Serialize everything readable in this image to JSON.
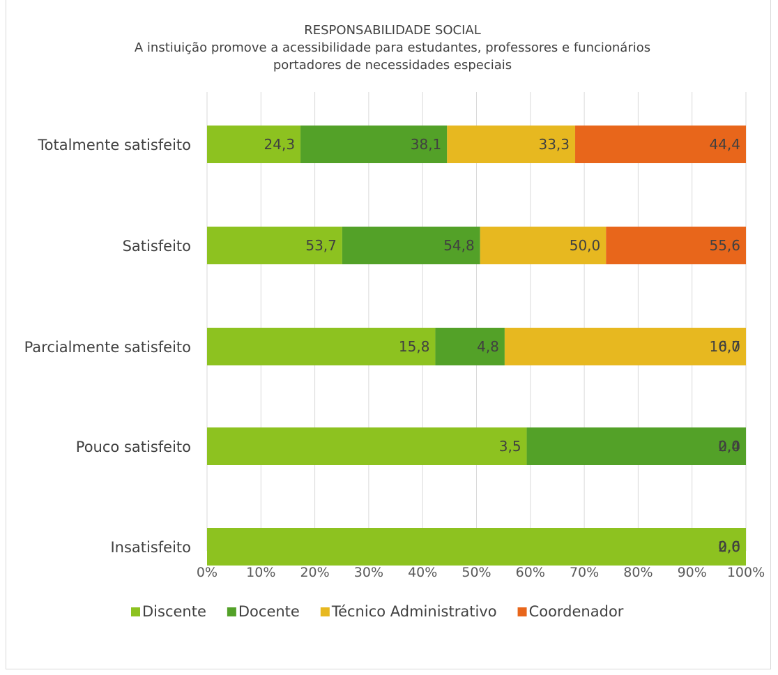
{
  "chart_data": {
    "type": "bar",
    "orientation": "horizontal",
    "stacked": "percent",
    "title": [
      "RESPONSABILIDADE SOCIAL",
      "A instiuição promove a acessibilidade para estudantes, professores e funcionários",
      "portadores de necessidades especiais"
    ],
    "categories": [
      "Totalmente satisfeito",
      "Satisfeito",
      "Parcialmente satisfeito",
      "Pouco satisfeito",
      "Insatisfeito"
    ],
    "series": [
      {
        "name": "Discente",
        "color": "#8dc220",
        "values": [
          24.3,
          53.7,
          15.8,
          3.5,
          2.6
        ]
      },
      {
        "name": "Docente",
        "color": "#53a128",
        "values": [
          38.1,
          54.8,
          4.8,
          2.4,
          0.0
        ]
      },
      {
        "name": "Técnico Administrativo",
        "color": "#e7b820",
        "values": [
          33.3,
          50.0,
          16.7,
          0.0,
          0.0
        ]
      },
      {
        "name": "Coordenador",
        "color": "#e8661b",
        "values": [
          44.4,
          55.6,
          0.0,
          0.0,
          0.0
        ]
      }
    ],
    "xticks": [
      "0%",
      "10%",
      "20%",
      "30%",
      "40%",
      "50%",
      "60%",
      "70%",
      "80%",
      "90%",
      "100%"
    ],
    "xlim": [
      0,
      100
    ],
    "grid": "vertical",
    "legend": "bottom"
  }
}
